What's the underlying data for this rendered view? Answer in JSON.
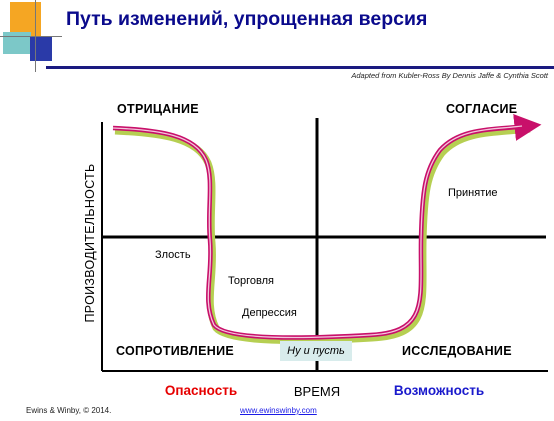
{
  "header": {
    "title": "Путь изменений, упрощенная версия",
    "credit": "Adapted from Kubler-Ross By Dennis Jaffe & Cynthia Scott"
  },
  "diagram": {
    "y_axis_label": "ПРОИЗВОДИТЕЛЬНОСТЬ",
    "x_axis_label": "ВРЕМЯ",
    "quadrants": {
      "top_left": "ОТРИЦАНИЕ",
      "top_right": "СОГЛАСИЕ",
      "bottom_left": "СОПРОТИВЛЕНИЕ",
      "bottom_right": "ИССЛЕДОВАНИЕ"
    },
    "stages": {
      "anger": "Злость",
      "bargaining": "Торговля",
      "depression": "Депрессия",
      "let_go": "Ну и пусть",
      "acceptance": "Принятие"
    },
    "bottom_left_label": "Опасность",
    "bottom_right_label": "Возможность",
    "colors": {
      "curve": "#c8106a",
      "curve_highlight": "#f4c6dc",
      "curve_shadow": "#b6cf52",
      "danger": "#e60000",
      "opportunity": "#1a1acc"
    }
  },
  "footer": {
    "copyright": "Ewins & Winby, © 2014.",
    "website": "www.ewinswinby.com"
  }
}
